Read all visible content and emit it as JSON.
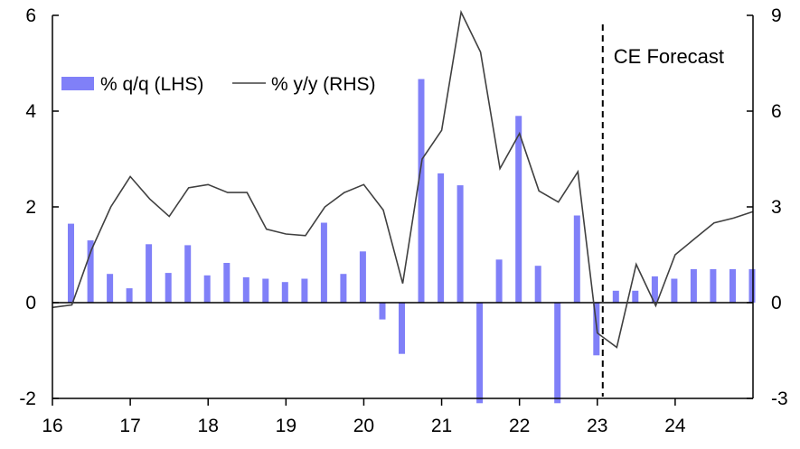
{
  "chart_data": {
    "type": "bar",
    "x_ticks": [
      "16",
      "17",
      "18",
      "19",
      "20",
      "21",
      "22",
      "23",
      "24"
    ],
    "x_range": [
      2016,
      2025
    ],
    "left_axis": {
      "ticks": [
        "6",
        "4",
        "2",
        "0",
        "-2"
      ],
      "range": [
        -2,
        6
      ]
    },
    "right_axis": {
      "ticks": [
        "9",
        "6",
        "3",
        "0",
        "-3"
      ],
      "range": [
        -3,
        9
      ]
    },
    "legend": {
      "placement": "top-left",
      "bars_label": "% q/q (LHS)",
      "line_label": "% y/y (RHS)"
    },
    "annotation": {
      "text": "CE Forecast",
      "at": 2023.0
    },
    "colors": {
      "bars": "#8080f8",
      "line": "#404040",
      "forecast_line": "#000000"
    },
    "series": [
      {
        "name": "% q/q (LHS)",
        "kind": "bar",
        "axis": "left",
        "x": [
          2016.25,
          2016.5,
          2016.75,
          2017.0,
          2017.25,
          2017.5,
          2017.75,
          2018.0,
          2018.25,
          2018.5,
          2018.75,
          2019.0,
          2019.25,
          2019.5,
          2019.75,
          2020.0,
          2020.25,
          2020.5,
          2020.75,
          2021.0,
          2021.25,
          2021.5,
          2021.75,
          2022.0,
          2022.25,
          2022.5,
          2022.75,
          2023.0,
          2023.25,
          2023.5,
          2023.75,
          2024.0,
          2024.25,
          2024.5,
          2024.75,
          2025.0
        ],
        "values": [
          1.65,
          1.3,
          0.6,
          0.3,
          1.22,
          0.62,
          1.2,
          0.57,
          0.83,
          0.53,
          0.5,
          0.43,
          0.5,
          1.67,
          0.6,
          1.07,
          -0.35,
          -1.07,
          4.67,
          2.7,
          2.45,
          -2.1,
          0.9,
          3.9,
          0.77,
          -2.1,
          1.82,
          -1.1,
          0.25,
          0.25,
          0.55,
          0.5,
          0.7,
          0.7,
          0.7,
          0.7
        ]
      },
      {
        "name": "% y/y (RHS)",
        "kind": "line",
        "axis": "right",
        "x": [
          2016.0,
          2016.25,
          2016.5,
          2016.75,
          2017.0,
          2017.25,
          2017.5,
          2017.75,
          2018.0,
          2018.25,
          2018.5,
          2018.75,
          2019.0,
          2019.25,
          2019.5,
          2019.75,
          2020.0,
          2020.25,
          2020.5,
          2020.75,
          2021.0,
          2021.25,
          2021.5,
          2021.75,
          2022.0,
          2022.25,
          2022.5,
          2022.75,
          2023.0,
          2023.25,
          2023.5,
          2023.75,
          2024.0,
          2024.25,
          2024.5,
          2024.75,
          2025.0
        ],
        "values": [
          -0.15,
          -0.07,
          1.65,
          3.0,
          3.95,
          3.25,
          2.7,
          3.6,
          3.7,
          3.45,
          3.45,
          2.3,
          2.15,
          2.1,
          3.0,
          3.45,
          3.7,
          2.9,
          0.6,
          4.5,
          5.4,
          9.1,
          7.85,
          4.2,
          5.3,
          3.5,
          3.15,
          4.1,
          -0.95,
          -1.4,
          1.2,
          -0.1,
          1.5,
          2.0,
          2.5,
          2.65,
          2.85
        ]
      }
    ]
  }
}
